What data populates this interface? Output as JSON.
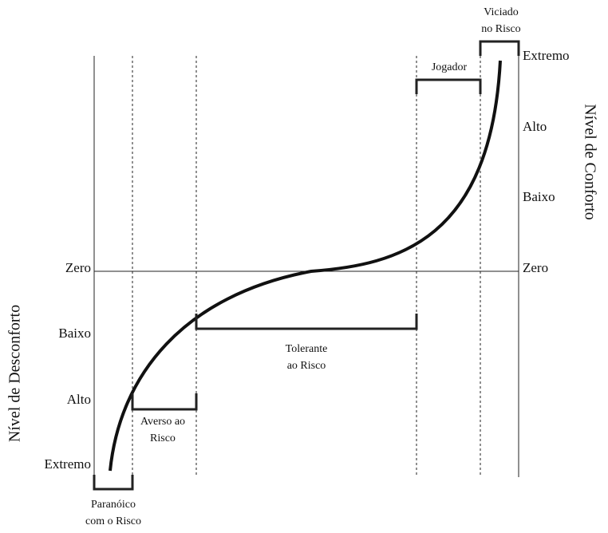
{
  "left_axis": {
    "title": "Nível de Desconforto",
    "levels": [
      "Zero",
      "Baixo",
      "Alto",
      "Extremo"
    ]
  },
  "right_axis": {
    "title": "Nível de Conforto",
    "levels": [
      "Extremo",
      "Alto",
      "Baixo",
      "Zero"
    ]
  },
  "brackets": [
    {
      "lines": [
        "Paranóico",
        "com o Risco"
      ]
    },
    {
      "lines": [
        "Averso ao",
        "Risco"
      ]
    },
    {
      "lines": [
        "Tolerante",
        "ao Risco"
      ]
    },
    {
      "lines": [
        "Jogador"
      ]
    },
    {
      "lines": [
        "Viciado",
        "no Risco"
      ]
    }
  ]
}
